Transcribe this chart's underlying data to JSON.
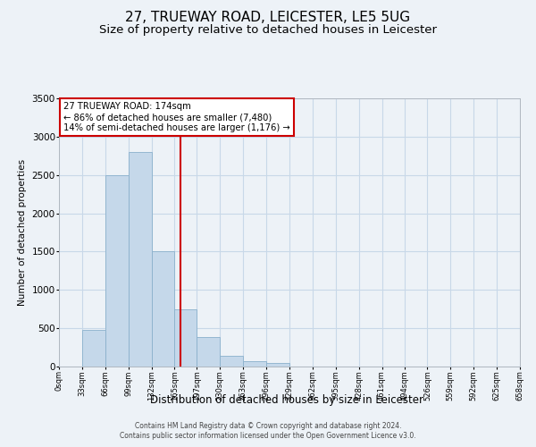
{
  "title": "27, TRUEWAY ROAD, LEICESTER, LE5 5UG",
  "subtitle": "Size of property relative to detached houses in Leicester",
  "xlabel": "Distribution of detached houses by size in Leicester",
  "ylabel": "Number of detached properties",
  "bar_edges": [
    0,
    33,
    66,
    99,
    132,
    165,
    197,
    230,
    263,
    296,
    329,
    362,
    395,
    428,
    461,
    494,
    526,
    559,
    592,
    625,
    658
  ],
  "bar_heights": [
    0,
    480,
    2500,
    2800,
    1500,
    750,
    390,
    145,
    70,
    50,
    0,
    0,
    0,
    0,
    0,
    0,
    0,
    0,
    0,
    0
  ],
  "tick_labels": [
    "0sqm",
    "33sqm",
    "66sqm",
    "99sqm",
    "132sqm",
    "165sqm",
    "197sqm",
    "230sqm",
    "263sqm",
    "296sqm",
    "329sqm",
    "362sqm",
    "395sqm",
    "428sqm",
    "461sqm",
    "494sqm",
    "526sqm",
    "559sqm",
    "592sqm",
    "625sqm",
    "658sqm"
  ],
  "bar_color": "#c5d8ea",
  "bar_edge_color": "#8ab0cc",
  "vline_x": 174,
  "vline_color": "#cc0000",
  "annotation_title": "27 TRUEWAY ROAD: 174sqm",
  "annotation_line1": "← 86% of detached houses are smaller (7,480)",
  "annotation_line2": "14% of semi-detached houses are larger (1,176) →",
  "annotation_box_color": "#ffffff",
  "annotation_box_edge": "#cc0000",
  "ylim": [
    0,
    3500
  ],
  "yticks": [
    0,
    500,
    1000,
    1500,
    2000,
    2500,
    3000,
    3500
  ],
  "grid_color": "#c8d8e8",
  "footer1": "Contains HM Land Registry data © Crown copyright and database right 2024.",
  "footer2": "Contains public sector information licensed under the Open Government Licence v3.0.",
  "bg_color": "#edf2f7",
  "plot_bg_color": "#edf2f7",
  "title_fontsize": 11,
  "subtitle_fontsize": 9.5
}
